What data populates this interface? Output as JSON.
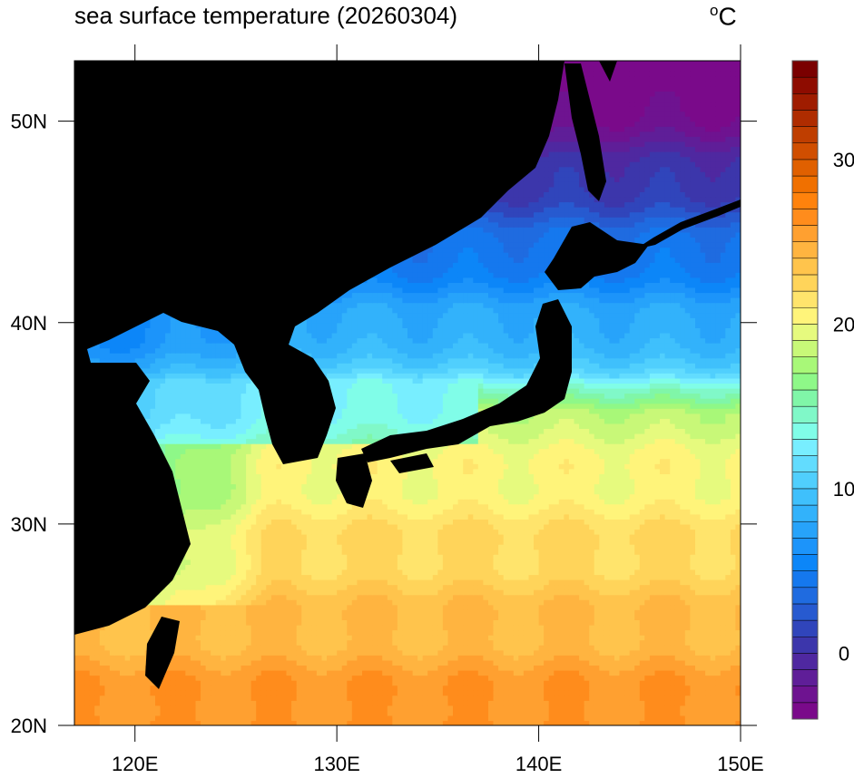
{
  "title": "sea surface temperature (20260304)",
  "unit": {
    "degree": "o",
    "letter": "C"
  },
  "map": {
    "lon_range": [
      117,
      150
    ],
    "lat_range": [
      20,
      53
    ],
    "x_ticks": [
      {
        "value": 120,
        "label": "120E"
      },
      {
        "value": 130,
        "label": "130E"
      },
      {
        "value": 140,
        "label": "140E"
      },
      {
        "value": 150,
        "label": "150E"
      }
    ],
    "y_ticks": [
      {
        "value": 20,
        "label": "20N"
      },
      {
        "value": 30,
        "label": "30N"
      },
      {
        "value": 40,
        "label": "40N"
      },
      {
        "value": 50,
        "label": "50N"
      }
    ],
    "land_color": "#000000"
  },
  "colorbar": {
    "min": -4,
    "max": 36,
    "step": 1,
    "tick_labels": [
      {
        "value": 0,
        "label": "0"
      },
      {
        "value": 10,
        "label": "10"
      },
      {
        "value": 20,
        "label": "20"
      },
      {
        "value": 30,
        "label": "30"
      }
    ],
    "colors": [
      "#7a0a8a",
      "#6e1390",
      "#5f1e98",
      "#4f28a0",
      "#3c36ab",
      "#3045bb",
      "#275ad0",
      "#1f6be0",
      "#1578ee",
      "#0c86f8",
      "#1c94fa",
      "#27a3fa",
      "#32b2fb",
      "#3fc0fc",
      "#50cffd",
      "#62dcfe",
      "#78eeff",
      "#80fde8",
      "#80f8c8",
      "#80f6a8",
      "#8ef888",
      "#a8f878",
      "#c8f878",
      "#e6fa7e",
      "#fff47a",
      "#ffe46c",
      "#ffd45a",
      "#ffc44c",
      "#ffb440",
      "#ffa030",
      "#ff8c1c",
      "#ff820c",
      "#f07000",
      "#e06000",
      "#d04e00",
      "#bf3e00",
      "#af2c00",
      "#9f1c00",
      "#8e0c00",
      "#7a0000"
    ]
  }
}
